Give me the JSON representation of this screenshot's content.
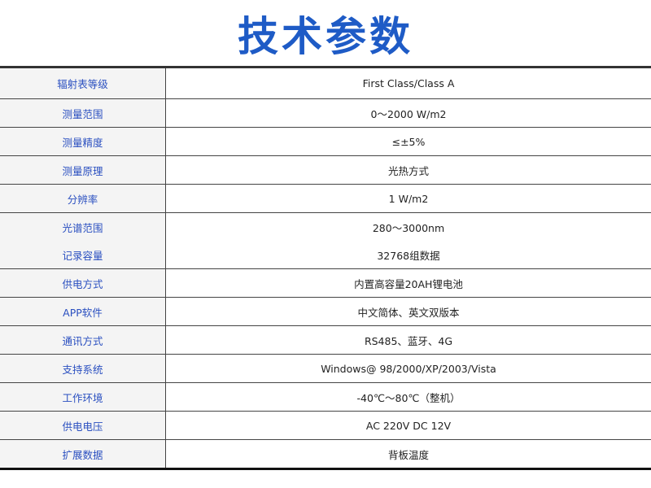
{
  "title": "技术参数",
  "colors": {
    "title": "#1e5bc6",
    "label": "#2a4fc0",
    "label_bg": "#f4f4f4"
  },
  "rows": [
    {
      "label": "辐射表等级",
      "value": "First Class/Class A"
    },
    {
      "label": "测量范围",
      "value": "0～2000 W/m2"
    },
    {
      "label": "测量精度",
      "value": "≤±5%"
    },
    {
      "label": "测量原理",
      "value": "光热方式"
    },
    {
      "label": "分辨率",
      "value": "1 W/m2"
    },
    {
      "label": "光谱范围",
      "value": "280～3000nm"
    },
    {
      "label": "记录容量",
      "value": "32768组数据"
    },
    {
      "label": "供电方式",
      "value": "内置高容量20AH锂电池"
    },
    {
      "label": "APP软件",
      "value": "中文简体、英文双版本"
    },
    {
      "label": "通讯方式",
      "value": "RS485、蓝牙、4G"
    },
    {
      "label": "支持系统",
      "value": "Windows@ 98/2000/XP/2003/Vista"
    },
    {
      "label": "工作环境",
      "value": "-40℃～80℃（整机）"
    },
    {
      "label": "供电电压",
      "value": "AC 220V  DC 12V"
    },
    {
      "label": "扩展数据",
      "value": "背板温度"
    }
  ]
}
